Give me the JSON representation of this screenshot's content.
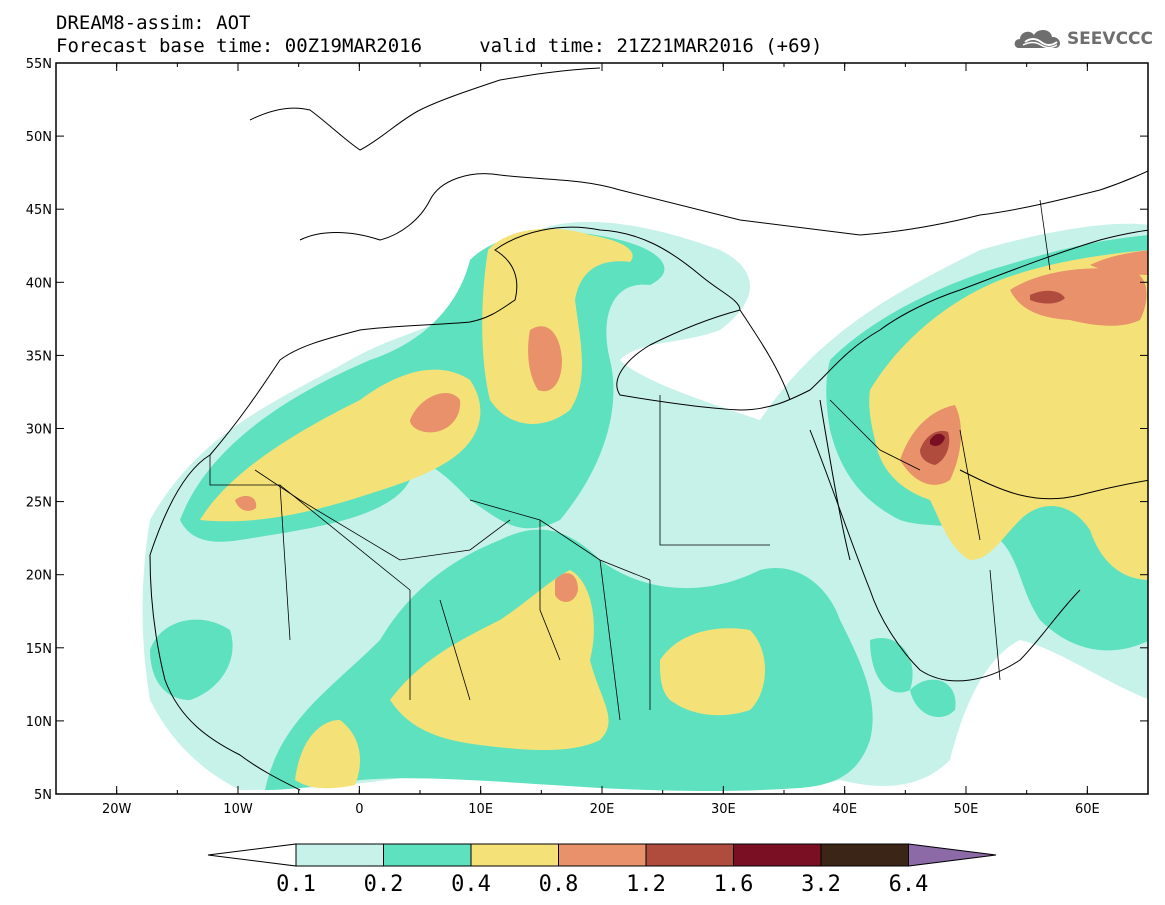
{
  "header": {
    "title_line1": "DREAM8-assim: AOT",
    "title_line2": "Forecast base time: 00Z19MAR2016     valid time: 21Z21MAR2016 (+69)",
    "logo_text": "SEEVCCC"
  },
  "map": {
    "variable": "AOT",
    "lon_range": [
      -25,
      65
    ],
    "lat_range": [
      5,
      55
    ],
    "lat_labels": [
      "5N",
      "10N",
      "15N",
      "20N",
      "25N",
      "30N",
      "35N",
      "40N",
      "45N",
      "50N",
      "55N"
    ],
    "lon_labels": [
      "20W",
      "10W",
      "0",
      "10E",
      "20E",
      "30E",
      "40E",
      "50E",
      "60E"
    ],
    "lat_values": [
      5,
      10,
      15,
      20,
      25,
      30,
      35,
      40,
      45,
      50,
      55
    ],
    "lon_values": [
      -20,
      -10,
      0,
      10,
      20,
      30,
      40,
      50,
      60
    ]
  },
  "colorbar": {
    "labels": [
      "0.1",
      "0.2",
      "0.4",
      "0.8",
      "1.2",
      "1.6",
      "3.2",
      "6.4"
    ],
    "colors": [
      "#ffffff",
      "#c6f2ea",
      "#5ee1bf",
      "#f4e278",
      "#e8916b",
      "#b04c3e",
      "#7a0f24",
      "#3b2516",
      "#8c6aa8"
    ]
  },
  "colors": {
    "level1": "#c6f2ea",
    "level2": "#5ee1bf",
    "level3": "#f4e278",
    "level4": "#e8916b",
    "level5": "#b04c3e",
    "level6": "#7a0f24",
    "level7": "#3b2516"
  }
}
